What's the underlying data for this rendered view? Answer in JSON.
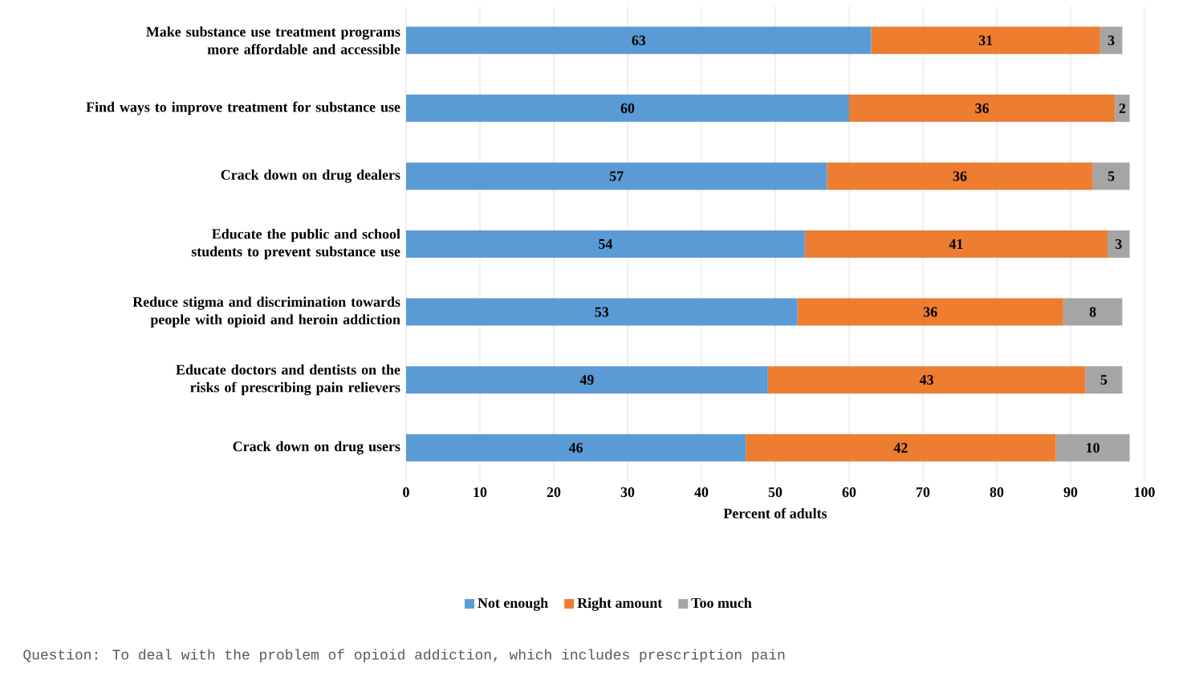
{
  "chart_data": {
    "type": "bar",
    "orientation": "horizontal",
    "stacked": true,
    "data_labels": true,
    "grid": "x",
    "legend": "bottom",
    "categories": [
      "Make substance use treatment programs more affordable and accessible",
      "Find ways to improve treatment for substance use",
      "Crack down on drug dealers",
      "Educate the public and school students to prevent substance use",
      "Reduce stigma and discrimination towards people with opioid and heroin addiction",
      "Educate doctors and dentists on the risks of prescribing pain relievers",
      "Crack down on drug users"
    ],
    "series": [
      {
        "name": "Not enough",
        "color": "#5b9bd5",
        "values": [
          63,
          60,
          57,
          54,
          53,
          49,
          46
        ]
      },
      {
        "name": "Right amount",
        "color": "#ed7d31",
        "values": [
          31,
          36,
          36,
          41,
          36,
          43,
          42
        ]
      },
      {
        "name": "Too much",
        "color": "#a5a5a5",
        "values": [
          3,
          2,
          5,
          3,
          8,
          5,
          10
        ]
      }
    ],
    "xlim": [
      0,
      100
    ],
    "xticks": [
      0,
      10,
      20,
      30,
      40,
      50,
      60,
      70,
      80,
      90,
      100
    ],
    "xlabel": "Percent of adults",
    "annotations": [
      "Question: To deal with the problem of opioid addiction, which includes prescription pain"
    ]
  }
}
